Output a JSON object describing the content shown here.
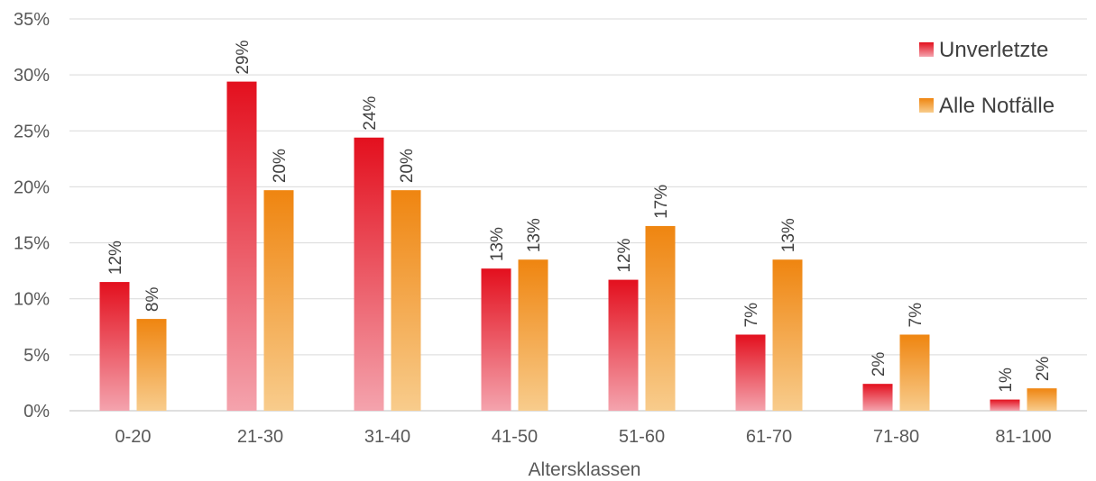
{
  "chart_data": {
    "type": "bar",
    "title": "",
    "xlabel": "Altersklassen",
    "ylabel": "",
    "ylim": [
      0,
      35
    ],
    "y_ticks": [
      0,
      5,
      10,
      15,
      20,
      25,
      30,
      35
    ],
    "y_tick_labels": [
      "0%",
      "5%",
      "10%",
      "15%",
      "20%",
      "25%",
      "30%",
      "35%"
    ],
    "grid": true,
    "legend_position": "top-right",
    "categories": [
      "0-20",
      "21-30",
      "31-40",
      "41-50",
      "51-60",
      "61-70",
      "71-80",
      "81-100"
    ],
    "series": [
      {
        "name": "Unverletzte",
        "values": [
          11.5,
          29.4,
          24.4,
          12.7,
          11.7,
          6.8,
          2.4,
          1.0
        ],
        "labels": [
          "12%",
          "29%",
          "24%",
          "13%",
          "12%",
          "7%",
          "2%",
          "1%"
        ],
        "color_top": "#e3101e",
        "color_bottom": "#f4a3ad"
      },
      {
        "name": "Alle Notfälle",
        "values": [
          8.2,
          19.7,
          19.7,
          13.5,
          16.5,
          13.5,
          6.8,
          2.0
        ],
        "labels": [
          "8%",
          "20%",
          "20%",
          "13%",
          "17%",
          "13%",
          "7%",
          "2%"
        ],
        "color_top": "#ef8510",
        "color_bottom": "#f8cc8c"
      }
    ]
  }
}
